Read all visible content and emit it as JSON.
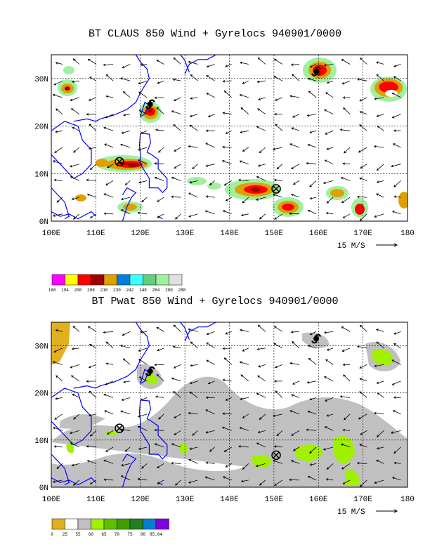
{
  "panels": [
    {
      "title": "BT CLAUS 850 Wind + Gyrelocs 940901/0000",
      "variable": "CLAUS",
      "lat_ticks": [
        "0N",
        "10N",
        "20N",
        "30N"
      ],
      "lon_ticks": [
        "100E",
        "110E",
        "120E",
        "130E",
        "140E",
        "150E",
        "160E",
        "170E",
        "180"
      ],
      "scale_label": "15 M/S",
      "colorbar": {
        "colors": [
          "#ff00ff",
          "#ffff00",
          "#ff0000",
          "#a00000",
          "#e0a000",
          "#0080e0",
          "#40ffff",
          "#60d080",
          "#a0f0a0",
          "#e0e0e0"
        ],
        "labels": [
          "168",
          "194",
          "200",
          "208",
          "216",
          "230",
          "242",
          "248",
          "264",
          "280",
          "288"
        ]
      },
      "gyre_symbols": [
        {
          "type": "cyclone",
          "lon": 159.5,
          "lat": 31.5
        },
        {
          "type": "cyclone",
          "lon": 122.2,
          "lat": 24.6
        },
        {
          "type": "gyre",
          "lon": 115.3,
          "lat": 12.5
        },
        {
          "type": "gyre",
          "lon": 150.5,
          "lat": 6.8
        }
      ]
    },
    {
      "title": "BT Pwat 850 Wind + Gyrelocs 940901/0000",
      "variable": "Pwat",
      "lat_ticks": [
        "0N",
        "10N",
        "20N",
        "30N"
      ],
      "lon_ticks": [
        "100E",
        "110E",
        "120E",
        "130E",
        "140E",
        "150E",
        "160E",
        "170E",
        "180"
      ],
      "scale_label": "15 M/S",
      "colorbar": {
        "colors": [
          "#e0b020",
          "#ffffff",
          "#c0c0c0",
          "#a0f000",
          "#60c000",
          "#40a000",
          "#208020",
          "#0080d0",
          "#8000e0"
        ],
        "labels": [
          "0",
          "25",
          "55",
          "60",
          "65",
          "70",
          "75",
          "80",
          "85.04"
        ]
      },
      "gyre_symbols": [
        {
          "type": "cyclone",
          "lon": 159.5,
          "lat": 31.5
        },
        {
          "type": "cyclone",
          "lon": 122.2,
          "lat": 24.6
        },
        {
          "type": "gyre",
          "lon": 115.3,
          "lat": 12.5
        },
        {
          "type": "gyre",
          "lon": 150.5,
          "lat": 6.8
        }
      ]
    }
  ],
  "colors": {
    "coast": "#0000ff",
    "grid": "#000000"
  }
}
